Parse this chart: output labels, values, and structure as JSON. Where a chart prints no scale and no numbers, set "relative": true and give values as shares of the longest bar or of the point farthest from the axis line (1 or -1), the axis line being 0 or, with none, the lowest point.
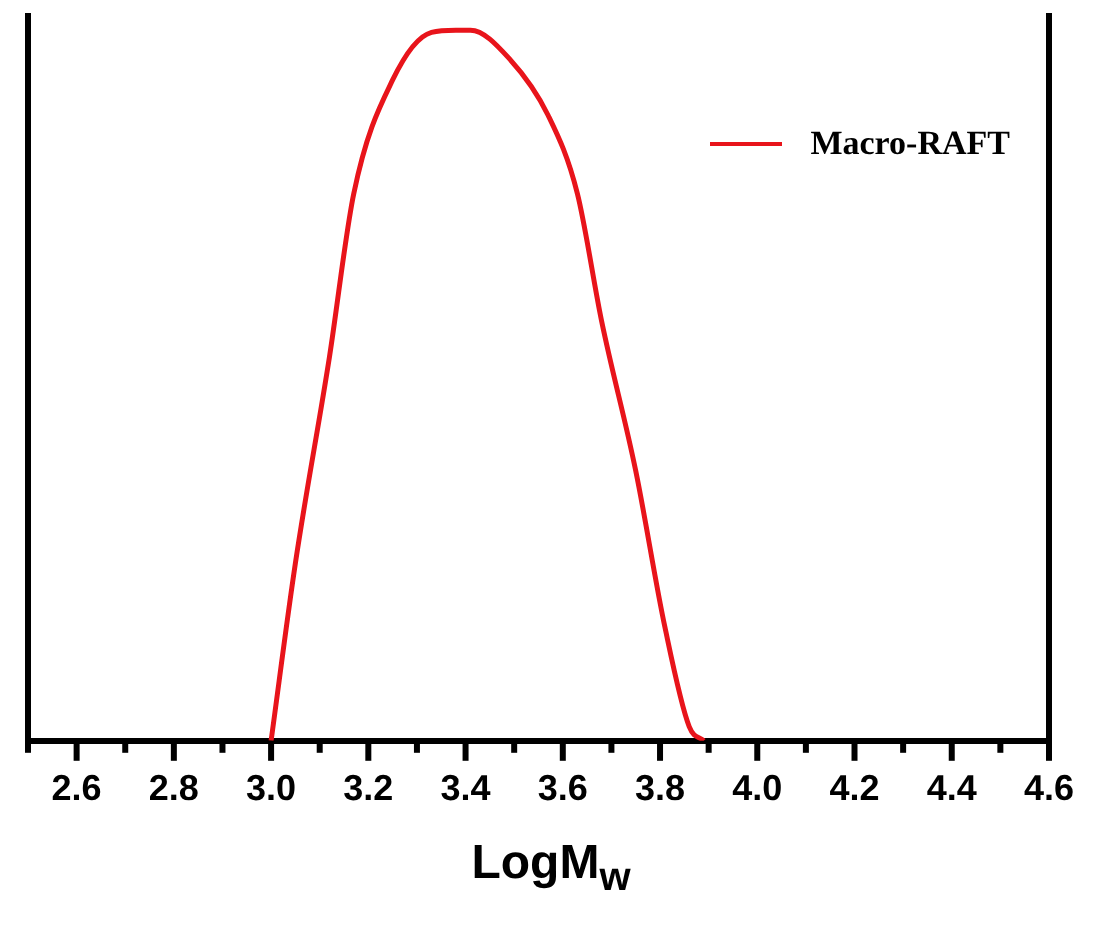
{
  "chart_data": {
    "type": "line",
    "relative": true,
    "xlabel": "LogM$_{w}$",
    "xlim": [
      2.5,
      4.6
    ],
    "xticks": [
      {
        "value": 2.5,
        "label": null
      },
      2.6,
      {
        "value": 2.7,
        "label": null
      },
      2.8,
      {
        "value": 2.9,
        "label": null
      },
      {
        "value": 3,
        "label": "3.0"
      },
      {
        "value": 3.1,
        "label": null
      },
      3.2,
      {
        "value": 3.3,
        "label": null
      },
      3.4,
      {
        "value": 3.5,
        "label": null
      },
      3.6,
      {
        "value": 3.7,
        "label": null
      },
      3.8,
      {
        "value": 3.9,
        "label": null
      },
      {
        "value": 4,
        "label": "4.0"
      },
      {
        "value": 4.1,
        "label": null
      },
      4.2,
      {
        "value": 4.3,
        "label": null
      },
      4.4,
      {
        "value": 4.5,
        "label": null
      },
      4.6
    ],
    "legend": "top right",
    "grid": false,
    "marker": "none",
    "line_style": "solid",
    "series": [
      {
        "name": "Macro-RAFT",
        "color": "#e8141b",
        "x": [
          3.0,
          3.05,
          3.12,
          3.17,
          3.25,
          3.33,
          3.38,
          3.41,
          3.49,
          3.57,
          3.63,
          3.68,
          3.75,
          3.81,
          3.86,
          3.89
        ],
        "values": [
          0,
          0.25,
          0.54,
          0.77,
          0.93,
          0.997,
          1,
          1,
          0.96,
          0.88,
          0.77,
          0.59,
          0.38,
          0.16,
          0.02,
          0
        ]
      }
    ]
  }
}
